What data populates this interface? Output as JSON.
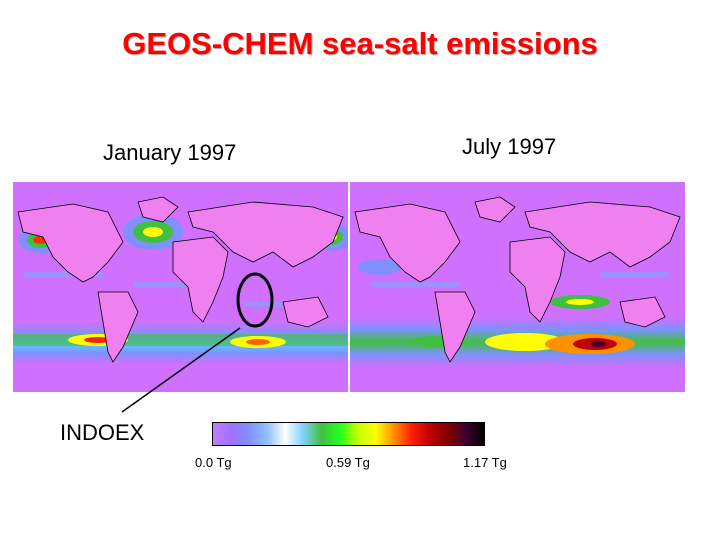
{
  "title": "GEOS-CHEM sea-salt emissions",
  "panels": [
    {
      "label": "January 1997"
    },
    {
      "label": "July 1997"
    }
  ],
  "annotation": {
    "label": "INDOEX"
  },
  "colorbar": {
    "ticks": [
      "0.0 Tg",
      "0.59 Tg",
      "1.17 Tg"
    ],
    "colors": [
      "#c080ff",
      "#a070ff",
      "#8090ff",
      "#90c0ff",
      "#ffffff",
      "#80d0ff",
      "#40c040",
      "#20ff20",
      "#c0ff00",
      "#ffff00",
      "#ff9000",
      "#ff2000",
      "#c00000",
      "#800000",
      "#400030",
      "#000000"
    ]
  },
  "colors": {
    "title": "#ff0000",
    "land": "#f080f0",
    "ocean_low": "#d070ff",
    "annotation": "#000000"
  }
}
